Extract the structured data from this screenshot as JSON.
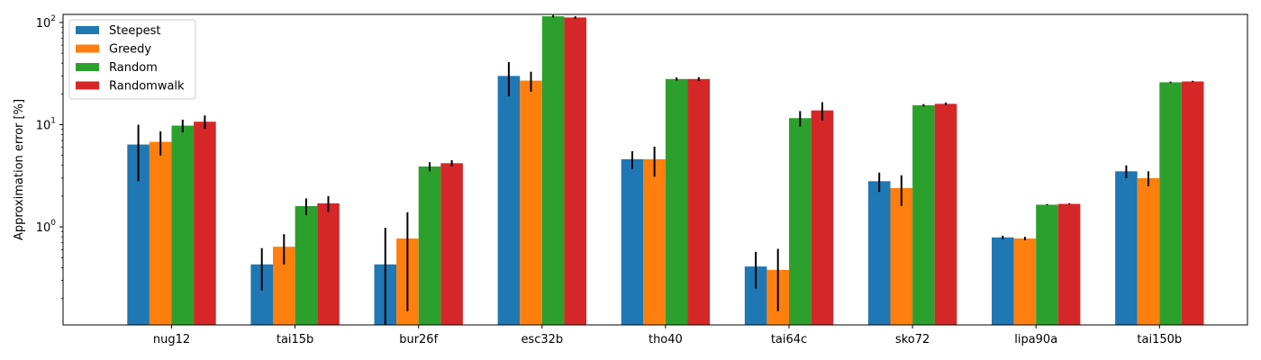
{
  "chart_data": {
    "type": "bar",
    "title": "",
    "xlabel": "",
    "ylabel": "Approximation error [%]",
    "yscale": "log",
    "ylim": [
      0.11,
      120
    ],
    "grid": false,
    "legend_position": "top-left",
    "categories": [
      "nug12",
      "tai15b",
      "bur26f",
      "esc32b",
      "tho40",
      "tai64c",
      "sko72",
      "lipa90a",
      "tai150b"
    ],
    "y_ticks": [
      {
        "value": 1,
        "base": "10",
        "exp": "0"
      },
      {
        "value": 10,
        "base": "10",
        "exp": "1"
      },
      {
        "value": 100,
        "base": "10",
        "exp": "2"
      }
    ],
    "series": [
      {
        "name": "Steepest",
        "color": "#1f77b4",
        "values": [
          6.4,
          0.43,
          0.43,
          30,
          4.6,
          0.41,
          2.8,
          0.79,
          3.5
        ],
        "errors": [
          3.6,
          0.19,
          0.55,
          11,
          0.9,
          0.16,
          0.6,
          0.03,
          0.5
        ]
      },
      {
        "name": "Greedy",
        "color": "#ff7f0e",
        "values": [
          6.8,
          0.64,
          0.77,
          27,
          4.6,
          0.38,
          2.4,
          0.77,
          3.0
        ],
        "errors": [
          1.8,
          0.21,
          0.62,
          6,
          1.5,
          0.23,
          0.8,
          0.03,
          0.5
        ]
      },
      {
        "name": "Random",
        "color": "#2ca02c",
        "values": [
          9.8,
          1.6,
          3.9,
          115,
          28,
          11.6,
          15.5,
          1.65,
          26
        ],
        "errors": [
          1.4,
          0.3,
          0.4,
          3,
          1,
          2,
          0.4,
          0.02,
          0.4
        ]
      },
      {
        "name": "Randomwalk",
        "color": "#d62728",
        "values": [
          10.7,
          1.7,
          4.2,
          112,
          28,
          13.8,
          16,
          1.68,
          26.5
        ],
        "errors": [
          1.6,
          0.3,
          0.3,
          3,
          1.2,
          2.8,
          0.5,
          0.02,
          0.4
        ]
      }
    ]
  }
}
